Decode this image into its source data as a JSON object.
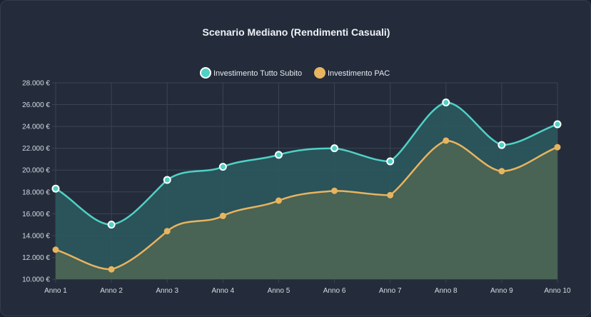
{
  "chart_data": {
    "type": "line",
    "title": "Scenario Mediano (Rendimenti Casuali)",
    "categories": [
      "Anno 1",
      "Anno 2",
      "Anno 3",
      "Anno 4",
      "Anno 5",
      "Anno 6",
      "Anno 7",
      "Anno 8",
      "Anno 9",
      "Anno 10"
    ],
    "series": [
      {
        "name": "Investimento Tutto Subito",
        "color": "#4fd1c5",
        "fill": "#2b5a60",
        "values": [
          18300,
          15000,
          19100,
          20300,
          21400,
          22000,
          20800,
          26200,
          22300,
          24200
        ]
      },
      {
        "name": "Investimento PAC",
        "color": "#e8b45f",
        "fill": "#4f6654",
        "values": [
          12700,
          10900,
          14400,
          15800,
          17200,
          18100,
          17700,
          22700,
          19900,
          22100
        ]
      }
    ],
    "ylim": [
      10000,
      28000
    ],
    "y_ticks": [
      10000,
      12000,
      14000,
      16000,
      18000,
      20000,
      22000,
      24000,
      26000,
      28000
    ],
    "y_tick_labels": [
      "10.000 €",
      "12.000 €",
      "14.000 €",
      "16.000 €",
      "18.000 €",
      "20.000 €",
      "22.000 €",
      "24.000 €",
      "26.000 €",
      "28.000 €"
    ],
    "grid": true,
    "legend_position": "top",
    "area_fill": true,
    "smooth": true
  }
}
